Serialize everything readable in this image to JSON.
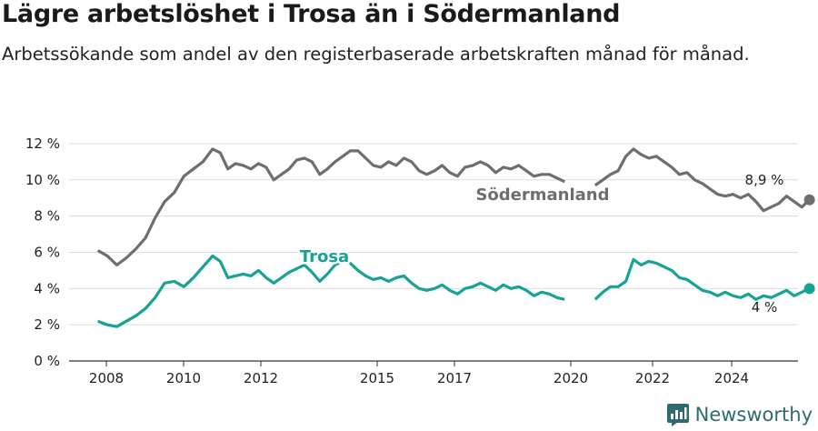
{
  "title": "Lägre arbetslöshet i Trosa än i Södermanland",
  "subtitle": "Arbetssökande som andel av den registerbaserade arbetskraften månad för månad.",
  "brand": {
    "name": "Newsworthy",
    "color": "#2f6b6e",
    "icon": "bar-chart-logo-icon"
  },
  "chart_data": {
    "type": "line",
    "title": "Lägre arbetslöshet i Trosa än i Södermanland",
    "subtitle": "Arbetssökande som andel av den registerbaserade arbetskraften månad för månad.",
    "xlabel": "",
    "ylabel": "",
    "x_ticks": [
      2008,
      2010,
      2012,
      2015,
      2017,
      2020,
      2022,
      2024
    ],
    "y_ticks": [
      {
        "value": 0,
        "label": "0 %"
      },
      {
        "value": 2,
        "label": "2 %"
      },
      {
        "value": 4,
        "label": "4 %"
      },
      {
        "value": 6,
        "label": "6 %"
      },
      {
        "value": 8,
        "label": "8 %"
      },
      {
        "value": 10,
        "label": "10 %"
      },
      {
        "value": 12,
        "label": "12 %"
      }
    ],
    "xlim": [
      2007.25,
      2026.3
    ],
    "ylim": [
      0,
      12.5
    ],
    "grid": "horizontal",
    "series": [
      {
        "name": "Södermanland",
        "color": "#6d6e71",
        "end_label": "8,9 %",
        "points": [
          [
            2008.0,
            6.1
          ],
          [
            2008.25,
            5.8
          ],
          [
            2008.5,
            5.3
          ],
          [
            2008.75,
            5.7
          ],
          [
            2009.0,
            6.2
          ],
          [
            2009.25,
            6.8
          ],
          [
            2009.5,
            7.9
          ],
          [
            2009.75,
            8.8
          ],
          [
            2010.0,
            9.3
          ],
          [
            2010.25,
            10.2
          ],
          [
            2010.5,
            10.6
          ],
          [
            2010.75,
            11.0
          ],
          [
            2011.0,
            11.7
          ],
          [
            2011.2,
            11.5
          ],
          [
            2011.4,
            10.6
          ],
          [
            2011.6,
            10.9
          ],
          [
            2011.8,
            10.8
          ],
          [
            2012.0,
            10.6
          ],
          [
            2012.2,
            10.9
          ],
          [
            2012.4,
            10.7
          ],
          [
            2012.6,
            10.0
          ],
          [
            2012.8,
            10.3
          ],
          [
            2013.0,
            10.6
          ],
          [
            2013.2,
            11.1
          ],
          [
            2013.4,
            11.2
          ],
          [
            2013.6,
            11.0
          ],
          [
            2013.8,
            10.3
          ],
          [
            2014.0,
            10.6
          ],
          [
            2014.2,
            11.0
          ],
          [
            2014.4,
            11.3
          ],
          [
            2014.6,
            11.6
          ],
          [
            2014.8,
            11.6
          ],
          [
            2015.0,
            11.2
          ],
          [
            2015.2,
            10.8
          ],
          [
            2015.4,
            10.7
          ],
          [
            2015.6,
            11.0
          ],
          [
            2015.8,
            10.8
          ],
          [
            2016.0,
            11.2
          ],
          [
            2016.2,
            11.0
          ],
          [
            2016.4,
            10.5
          ],
          [
            2016.6,
            10.3
          ],
          [
            2016.8,
            10.5
          ],
          [
            2017.0,
            10.8
          ],
          [
            2017.2,
            10.4
          ],
          [
            2017.4,
            10.2
          ],
          [
            2017.6,
            10.7
          ],
          [
            2017.8,
            10.8
          ],
          [
            2018.0,
            11.0
          ],
          [
            2018.2,
            10.8
          ],
          [
            2018.4,
            10.4
          ],
          [
            2018.6,
            10.7
          ],
          [
            2018.8,
            10.6
          ],
          [
            2019.0,
            10.8
          ],
          [
            2019.2,
            10.5
          ],
          [
            2019.4,
            10.2
          ],
          [
            2019.6,
            10.3
          ],
          [
            2019.8,
            10.3
          ],
          [
            2020.0,
            10.1
          ],
          [
            2020.2,
            9.9
          ]
        ],
        "points2": [
          [
            2021.0,
            9.7
          ],
          [
            2021.2,
            10.0
          ],
          [
            2021.4,
            10.3
          ],
          [
            2021.6,
            10.5
          ],
          [
            2021.8,
            11.3
          ],
          [
            2022.0,
            11.7
          ],
          [
            2022.2,
            11.4
          ],
          [
            2022.4,
            11.2
          ],
          [
            2022.6,
            11.3
          ],
          [
            2022.8,
            11.0
          ],
          [
            2023.0,
            10.7
          ],
          [
            2023.2,
            10.3
          ],
          [
            2023.4,
            10.4
          ],
          [
            2023.6,
            10.0
          ],
          [
            2023.8,
            9.8
          ],
          [
            2024.0,
            9.5
          ],
          [
            2024.2,
            9.2
          ],
          [
            2024.4,
            9.1
          ],
          [
            2024.6,
            9.2
          ],
          [
            2024.8,
            9.0
          ],
          [
            2025.0,
            9.2
          ],
          [
            2025.2,
            8.8
          ],
          [
            2025.4,
            8.3
          ],
          [
            2025.6,
            8.5
          ],
          [
            2025.8,
            8.7
          ],
          [
            2026.0,
            9.1
          ],
          [
            2026.2,
            8.8
          ],
          [
            2026.4,
            8.5
          ],
          [
            2026.6,
            8.9
          ]
        ]
      },
      {
        "name": "Trosa",
        "color": "#16a394",
        "end_label": "4 %",
        "points": [
          [
            2008.0,
            2.2
          ],
          [
            2008.25,
            2.0
          ],
          [
            2008.5,
            1.9
          ],
          [
            2008.75,
            2.2
          ],
          [
            2009.0,
            2.5
          ],
          [
            2009.25,
            2.9
          ],
          [
            2009.5,
            3.5
          ],
          [
            2009.75,
            4.3
          ],
          [
            2010.0,
            4.4
          ],
          [
            2010.25,
            4.1
          ],
          [
            2010.5,
            4.6
          ],
          [
            2010.75,
            5.2
          ],
          [
            2011.0,
            5.8
          ],
          [
            2011.2,
            5.5
          ],
          [
            2011.4,
            4.6
          ],
          [
            2011.6,
            4.7
          ],
          [
            2011.8,
            4.8
          ],
          [
            2012.0,
            4.7
          ],
          [
            2012.2,
            5.0
          ],
          [
            2012.4,
            4.6
          ],
          [
            2012.6,
            4.3
          ],
          [
            2012.8,
            4.6
          ],
          [
            2013.0,
            4.9
          ],
          [
            2013.2,
            5.1
          ],
          [
            2013.4,
            5.3
          ],
          [
            2013.6,
            4.9
          ],
          [
            2013.8,
            4.4
          ],
          [
            2014.0,
            4.8
          ],
          [
            2014.2,
            5.3
          ],
          [
            2014.4,
            5.5
          ],
          [
            2014.6,
            5.4
          ],
          [
            2014.8,
            5.0
          ],
          [
            2015.0,
            4.7
          ],
          [
            2015.2,
            4.5
          ],
          [
            2015.4,
            4.6
          ],
          [
            2015.6,
            4.4
          ],
          [
            2015.8,
            4.6
          ],
          [
            2016.0,
            4.7
          ],
          [
            2016.2,
            4.3
          ],
          [
            2016.4,
            4.0
          ],
          [
            2016.6,
            3.9
          ],
          [
            2016.8,
            4.0
          ],
          [
            2017.0,
            4.2
          ],
          [
            2017.2,
            3.9
          ],
          [
            2017.4,
            3.7
          ],
          [
            2017.6,
            4.0
          ],
          [
            2017.8,
            4.1
          ],
          [
            2018.0,
            4.3
          ],
          [
            2018.2,
            4.1
          ],
          [
            2018.4,
            3.9
          ],
          [
            2018.6,
            4.2
          ],
          [
            2018.8,
            4.0
          ],
          [
            2019.0,
            4.1
          ],
          [
            2019.2,
            3.9
          ],
          [
            2019.4,
            3.6
          ],
          [
            2019.6,
            3.8
          ],
          [
            2019.8,
            3.7
          ],
          [
            2020.0,
            3.5
          ],
          [
            2020.2,
            3.4
          ]
        ],
        "points2": [
          [
            2021.0,
            3.4
          ],
          [
            2021.2,
            3.8
          ],
          [
            2021.4,
            4.1
          ],
          [
            2021.6,
            4.1
          ],
          [
            2021.8,
            4.4
          ],
          [
            2022.0,
            5.6
          ],
          [
            2022.2,
            5.3
          ],
          [
            2022.4,
            5.5
          ],
          [
            2022.6,
            5.4
          ],
          [
            2022.8,
            5.2
          ],
          [
            2023.0,
            5.0
          ],
          [
            2023.2,
            4.6
          ],
          [
            2023.4,
            4.5
          ],
          [
            2023.6,
            4.2
          ],
          [
            2023.8,
            3.9
          ],
          [
            2024.0,
            3.8
          ],
          [
            2024.2,
            3.6
          ],
          [
            2024.4,
            3.8
          ],
          [
            2024.6,
            3.6
          ],
          [
            2024.8,
            3.5
          ],
          [
            2025.0,
            3.7
          ],
          [
            2025.2,
            3.4
          ],
          [
            2025.4,
            3.6
          ],
          [
            2025.6,
            3.5
          ],
          [
            2025.8,
            3.7
          ],
          [
            2026.0,
            3.9
          ],
          [
            2026.2,
            3.6
          ],
          [
            2026.4,
            3.8
          ],
          [
            2026.6,
            4.0
          ]
        ]
      }
    ]
  }
}
